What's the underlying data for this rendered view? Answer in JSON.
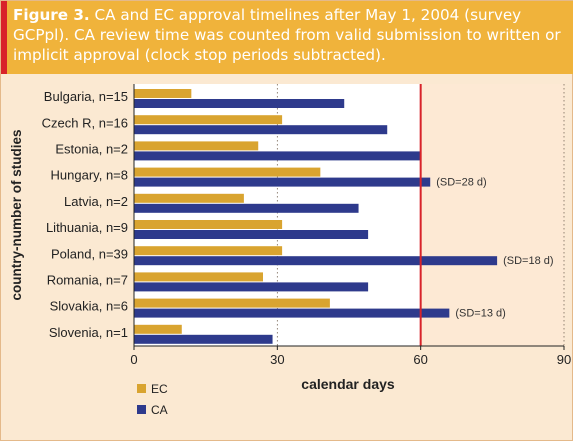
{
  "caption": {
    "label": "Figure 3.",
    "text": "CA and EC approval timelines after May 1, 2004 (survey GCPpl). CA review time was counted from valid submission to written or implicit approval (clock stop periods subtracted)."
  },
  "colors": {
    "header_bg": "#f0b33b",
    "header_accent": "#d8232a",
    "figure_bg": "#fbe9d2",
    "plot_bg_left": "#ffffff",
    "plot_bg_right": "#fde9d4",
    "ec": "#d9a430",
    "ca": "#2e3a8c",
    "reference_line": "#d8232a"
  },
  "chart_data": {
    "type": "bar",
    "orientation": "horizontal",
    "categories": [
      "Bulgaria, n=15",
      "Czech R, n=16",
      "Estonia, n=2",
      "Hungary, n=8",
      "Latvia, n=2",
      "Lithuania, n=9",
      "Poland, n=39",
      "Romania, n=7",
      "Slovakia, n=6",
      "Slovenia, n=1"
    ],
    "series": [
      {
        "name": "EC",
        "values": [
          12,
          31,
          26,
          39,
          23,
          31,
          31,
          27,
          41,
          10
        ]
      },
      {
        "name": "CA",
        "values": [
          44,
          53,
          60,
          62,
          47,
          49,
          76,
          49,
          66,
          29
        ]
      }
    ],
    "annotations": [
      {
        "category": "Hungary, n=8",
        "text": "(SD=28 d)"
      },
      {
        "category": "Poland, n=39",
        "text": "(SD=18 d)"
      },
      {
        "category": "Slovakia, n=6",
        "text": "(SD=13 d)"
      }
    ],
    "reference_line": 60,
    "xlabel": "calendar days",
    "ylabel": "country-number of studies",
    "xlim": [
      0,
      90
    ],
    "xticks": [
      0,
      30,
      60,
      90
    ],
    "legend": [
      "EC",
      "CA"
    ],
    "legend_position": "bottom-left",
    "grid": true
  }
}
